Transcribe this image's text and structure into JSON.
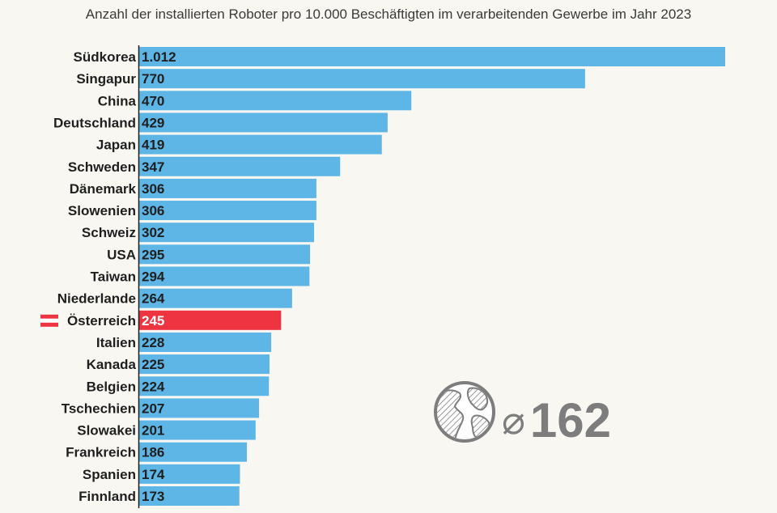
{
  "title": "Anzahl der installierten Roboter pro 10.000 Beschäftigten im verarbeitenden Gewerbe im Jahr 2023",
  "colors": {
    "bar": "#5db6e6",
    "highlight": "#ee3341",
    "axis": "#1f1f1f",
    "avg_text": "#7d7d7d"
  },
  "average": {
    "symbol": "⌀",
    "value": "162",
    "icon": "globe-icon"
  },
  "chart_data": {
    "type": "bar",
    "orientation": "horizontal",
    "categories": [
      "Südkorea",
      "Singapur",
      "China",
      "Deutschland",
      "Japan",
      "Schweden",
      "Dänemark",
      "Slowenien",
      "Schweiz",
      "USA",
      "Taiwan",
      "Niederlande",
      "Österreich",
      "Italien",
      "Kanada",
      "Belgien",
      "Tschechien",
      "Slowakei",
      "Frankreich",
      "Spanien",
      "Finnland"
    ],
    "values": [
      1012,
      770,
      470,
      429,
      419,
      347,
      306,
      306,
      302,
      295,
      294,
      264,
      245,
      228,
      225,
      224,
      207,
      201,
      186,
      174,
      173
    ],
    "value_labels": [
      "1.012",
      "770",
      "470",
      "429",
      "419",
      "347",
      "306",
      "306",
      "302",
      "295",
      "294",
      "264",
      "245",
      "228",
      "225",
      "224",
      "207",
      "201",
      "186",
      "174",
      "173"
    ],
    "highlight_category": "Österreich",
    "highlight_icon": "austria-flag-icon",
    "xlim": [
      0,
      1012
    ],
    "grid": false,
    "legend": "none"
  }
}
